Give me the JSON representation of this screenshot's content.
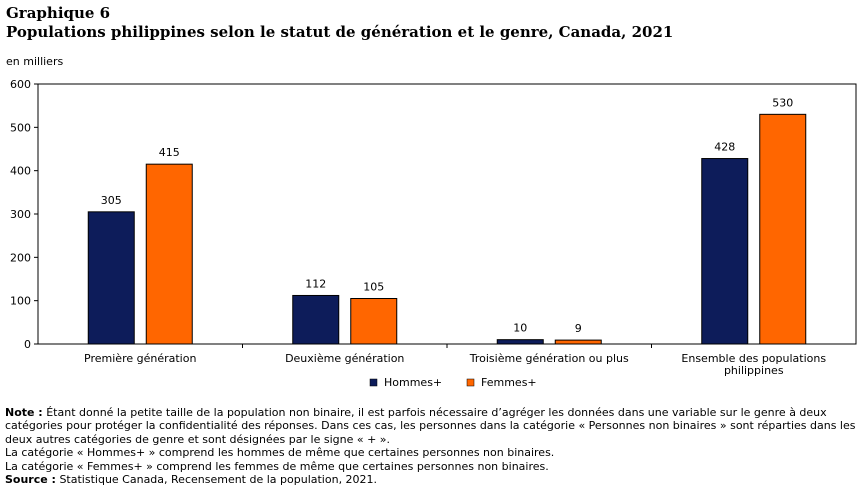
{
  "header": {
    "label": "Graphique 6",
    "title": "Populations philippines selon le statut de génération et le genre, Canada, 2021"
  },
  "chart_data": {
    "type": "bar",
    "unit_label": "en milliers",
    "categories": [
      "Première génération",
      "Deuxième génération",
      "Troisième génération ou plus",
      "Ensemble des populations philippines"
    ],
    "series": [
      {
        "name": "Hommes+",
        "color": "#0d1c5a",
        "values": [
          305,
          112,
          10,
          428
        ]
      },
      {
        "name": "Femmes+",
        "color": "#ff6600",
        "values": [
          415,
          105,
          9,
          530
        ]
      }
    ],
    "ylim": [
      0,
      600
    ],
    "yticks": [
      "0",
      "100",
      "200",
      "300",
      "400",
      "500",
      "600"
    ],
    "legend_position": "bottom-center",
    "grid": false
  },
  "notes": {
    "note_label": "Note :",
    "note_text": "Étant donné la petite taille de la population non binaire, il est parfois nécessaire d’agréger les données dans une variable sur le genre à deux catégories pour protéger la confidentialité des réponses. Dans ces cas, les personnes dans la catégorie « Personnes non binaires » sont réparties dans les deux autres catégories de genre et sont désignées par le signe « + ».",
    "line2": "La catégorie « Hommes+ » comprend les hommes de même que certaines personnes non binaires.",
    "line3": "La catégorie « Femmes+ » comprend les femmes de même que certaines personnes non binaires.",
    "source_label": "Source :",
    "source_text": "Statistique Canada, Recensement de la population, 2021."
  }
}
